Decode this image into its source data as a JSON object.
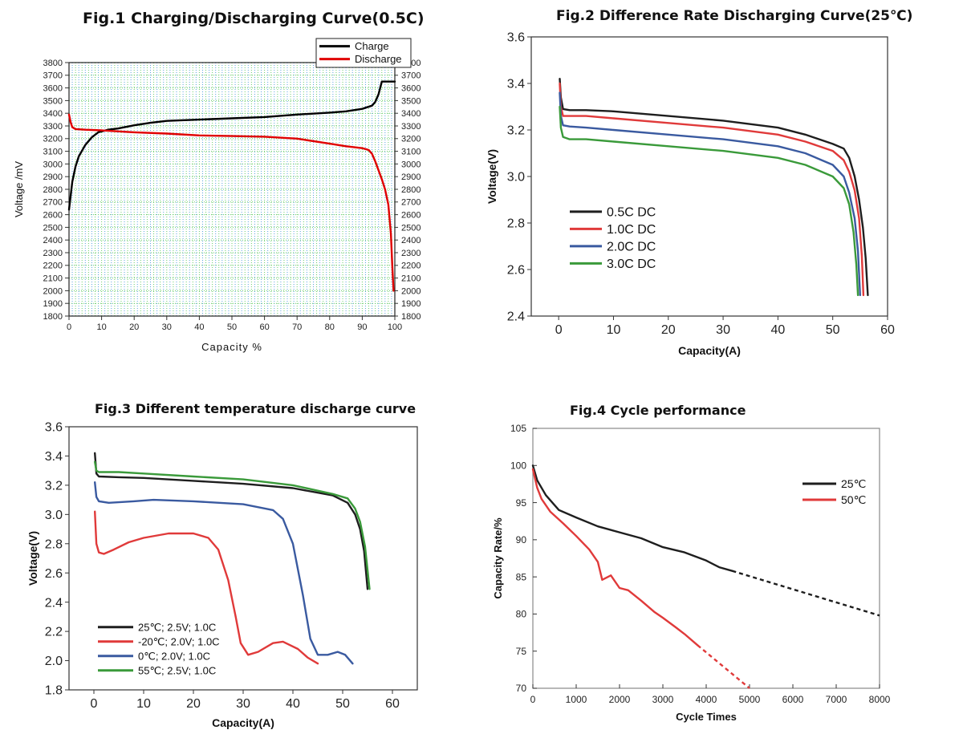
{
  "chart_data": [
    {
      "id": "fig1",
      "type": "line",
      "title": "Fig.1  Charging/Discharging Curve(0.5C)",
      "xlabel": "Capacity  %",
      "ylabel": "Voltage /mV",
      "xlim": [
        0,
        100
      ],
      "ylim": [
        1800,
        3800
      ],
      "xticks": [
        "0",
        "10",
        "20",
        "30",
        "40",
        "50",
        "60",
        "70",
        "80",
        "90",
        "100"
      ],
      "yticks": [
        "1800",
        "1900",
        "2000",
        "2100",
        "2200",
        "2300",
        "2400",
        "2500",
        "2600",
        "2700",
        "2800",
        "2900",
        "3000",
        "3100",
        "3200",
        "3300",
        "3400",
        "3500",
        "3600",
        "3700",
        "3800"
      ],
      "grid": true,
      "legend_position": "top-right",
      "series": [
        {
          "name": "Charge",
          "color": "#000000",
          "points": [
            [
              0,
              2640
            ],
            [
              1,
              2860
            ],
            [
              2,
              2980
            ],
            [
              3,
              3060
            ],
            [
              5,
              3150
            ],
            [
              7,
              3210
            ],
            [
              9,
              3250
            ],
            [
              12,
              3270
            ],
            [
              15,
              3280
            ],
            [
              20,
              3305
            ],
            [
              25,
              3325
            ],
            [
              30,
              3340
            ],
            [
              40,
              3350
            ],
            [
              50,
              3360
            ],
            [
              60,
              3370
            ],
            [
              70,
              3390
            ],
            [
              80,
              3405
            ],
            [
              85,
              3415
            ],
            [
              90,
              3435
            ],
            [
              93,
              3460
            ],
            [
              94,
              3490
            ],
            [
              95,
              3550
            ],
            [
              96,
              3650
            ],
            [
              98,
              3650
            ],
            [
              100,
              3650
            ]
          ]
        },
        {
          "name": "Discharge",
          "color": "#e00000",
          "points": [
            [
              0,
              3390
            ],
            [
              0.5,
              3330
            ],
            [
              1,
              3290
            ],
            [
              2,
              3275
            ],
            [
              5,
              3270
            ],
            [
              10,
              3265
            ],
            [
              20,
              3250
            ],
            [
              30,
              3240
            ],
            [
              40,
              3225
            ],
            [
              50,
              3220
            ],
            [
              60,
              3215
            ],
            [
              70,
              3200
            ],
            [
              80,
              3160
            ],
            [
              85,
              3140
            ],
            [
              90,
              3125
            ],
            [
              92,
              3110
            ],
            [
              93,
              3080
            ],
            [
              94,
              3020
            ],
            [
              95,
              2950
            ],
            [
              96,
              2880
            ],
            [
              97,
              2800
            ],
            [
              98,
              2680
            ],
            [
              98.8,
              2450
            ],
            [
              99.2,
              2200
            ],
            [
              99.6,
              2000
            ]
          ]
        }
      ]
    },
    {
      "id": "fig2",
      "type": "line",
      "title": "Fig.2 Difference Rate Discharging Curve(25℃)",
      "xlabel": "Capacity(A)",
      "ylabel": "Voltage(V)",
      "xlim": [
        -5,
        60
      ],
      "ylim": [
        2.4,
        3.6
      ],
      "xticks": [
        "0",
        "10",
        "20",
        "30",
        "40",
        "50",
        "60"
      ],
      "yticks": [
        "2.4",
        "2.6",
        "2.8",
        "3.0",
        "3.2",
        "3.4",
        "3.6"
      ],
      "grid": false,
      "legend_position": "bottom-left",
      "series": [
        {
          "name": "0.5C DC",
          "color": "#1e1e1e",
          "points": [
            [
              0.2,
              3.42
            ],
            [
              0.4,
              3.34
            ],
            [
              0.8,
              3.29
            ],
            [
              2,
              3.285
            ],
            [
              5,
              3.285
            ],
            [
              10,
              3.28
            ],
            [
              20,
              3.26
            ],
            [
              30,
              3.24
            ],
            [
              40,
              3.21
            ],
            [
              45,
              3.18
            ],
            [
              50,
              3.14
            ],
            [
              52,
              3.12
            ],
            [
              53,
              3.08
            ],
            [
              54,
              3.0
            ],
            [
              54.8,
              2.9
            ],
            [
              55.5,
              2.78
            ],
            [
              56,
              2.65
            ],
            [
              56.4,
              2.49
            ]
          ]
        },
        {
          "name": "1.0C DC",
          "color": "#e03a3a",
          "points": [
            [
              0.2,
              3.4
            ],
            [
              0.4,
              3.3
            ],
            [
              0.8,
              3.26
            ],
            [
              2,
              3.26
            ],
            [
              5,
              3.26
            ],
            [
              10,
              3.25
            ],
            [
              20,
              3.23
            ],
            [
              30,
              3.21
            ],
            [
              40,
              3.18
            ],
            [
              45,
              3.15
            ],
            [
              50,
              3.11
            ],
            [
              52,
              3.07
            ],
            [
              53,
              3.02
            ],
            [
              54,
              2.94
            ],
            [
              54.8,
              2.82
            ],
            [
              55.3,
              2.66
            ],
            [
              55.6,
              2.49
            ]
          ]
        },
        {
          "name": "2.0C DC",
          "color": "#3a5aa0",
          "points": [
            [
              0.2,
              3.36
            ],
            [
              0.4,
              3.26
            ],
            [
              0.8,
              3.22
            ],
            [
              2,
              3.215
            ],
            [
              5,
              3.21
            ],
            [
              10,
              3.2
            ],
            [
              20,
              3.18
            ],
            [
              30,
              3.16
            ],
            [
              40,
              3.13
            ],
            [
              45,
              3.1
            ],
            [
              50,
              3.05
            ],
            [
              52,
              3.0
            ],
            [
              53,
              2.93
            ],
            [
              54,
              2.82
            ],
            [
              54.6,
              2.68
            ],
            [
              55,
              2.49
            ]
          ]
        },
        {
          "name": "3.0C DC",
          "color": "#3a9a3a",
          "points": [
            [
              0.2,
              3.3
            ],
            [
              0.4,
              3.21
            ],
            [
              0.8,
              3.17
            ],
            [
              2,
              3.16
            ],
            [
              5,
              3.16
            ],
            [
              10,
              3.15
            ],
            [
              20,
              3.13
            ],
            [
              30,
              3.11
            ],
            [
              40,
              3.08
            ],
            [
              45,
              3.05
            ],
            [
              50,
              3.0
            ],
            [
              52,
              2.95
            ],
            [
              53,
              2.88
            ],
            [
              53.8,
              2.76
            ],
            [
              54.3,
              2.62
            ],
            [
              54.6,
              2.49
            ]
          ]
        }
      ]
    },
    {
      "id": "fig3",
      "type": "line",
      "title": "Fig.3 Different temperature discharge curve",
      "xlabel": "Capacity(A)",
      "ylabel": "Voltage(V)",
      "xlim": [
        -5,
        65
      ],
      "ylim": [
        1.8,
        3.6
      ],
      "xticks": [
        "0",
        "10",
        "20",
        "30",
        "40",
        "50",
        "60"
      ],
      "yticks": [
        "1.8",
        "2.0",
        "2.2",
        "2.4",
        "2.6",
        "2.8",
        "3.0",
        "3.2",
        "3.4",
        "3.6"
      ],
      "grid": false,
      "legend_position": "bottom-left",
      "series": [
        {
          "name": "25℃; 2.5V; 1.0C",
          "color": "#1e1e1e",
          "points": [
            [
              0.2,
              3.42
            ],
            [
              0.5,
              3.28
            ],
            [
              1,
              3.26
            ],
            [
              5,
              3.255
            ],
            [
              10,
              3.25
            ],
            [
              20,
              3.23
            ],
            [
              30,
              3.21
            ],
            [
              40,
              3.18
            ],
            [
              48,
              3.13
            ],
            [
              51,
              3.08
            ],
            [
              52.5,
              3.0
            ],
            [
              53.5,
              2.9
            ],
            [
              54.3,
              2.75
            ],
            [
              55,
              2.49
            ]
          ]
        },
        {
          "name": "-20℃; 2.0V; 1.0C",
          "color": "#e03a3a",
          "points": [
            [
              0.2,
              3.02
            ],
            [
              0.5,
              2.8
            ],
            [
              1,
              2.74
            ],
            [
              2,
              2.73
            ],
            [
              4,
              2.76
            ],
            [
              7,
              2.81
            ],
            [
              10,
              2.84
            ],
            [
              15,
              2.87
            ],
            [
              20,
              2.87
            ],
            [
              23,
              2.84
            ],
            [
              25,
              2.76
            ],
            [
              27,
              2.55
            ],
            [
              28.5,
              2.3
            ],
            [
              29.5,
              2.12
            ],
            [
              31,
              2.04
            ],
            [
              33,
              2.06
            ],
            [
              36,
              2.12
            ],
            [
              38,
              2.13
            ],
            [
              41,
              2.08
            ],
            [
              43,
              2.02
            ],
            [
              45,
              1.98
            ]
          ]
        },
        {
          "name": "0℃; 2.0V; 1.0C",
          "color": "#3a5aa0",
          "points": [
            [
              0.2,
              3.22
            ],
            [
              0.5,
              3.12
            ],
            [
              1,
              3.09
            ],
            [
              3,
              3.08
            ],
            [
              8,
              3.09
            ],
            [
              12,
              3.1
            ],
            [
              20,
              3.09
            ],
            [
              30,
              3.07
            ],
            [
              36,
              3.03
            ],
            [
              38,
              2.97
            ],
            [
              40,
              2.8
            ],
            [
              42,
              2.45
            ],
            [
              43.5,
              2.15
            ],
            [
              45,
              2.04
            ],
            [
              47,
              2.04
            ],
            [
              49,
              2.06
            ],
            [
              50.5,
              2.04
            ],
            [
              52,
              1.98
            ]
          ]
        },
        {
          "name": "55℃; 2.5V; 1.0C",
          "color": "#3a9a3a",
          "points": [
            [
              0.2,
              3.36
            ],
            [
              0.5,
              3.3
            ],
            [
              1,
              3.29
            ],
            [
              5,
              3.29
            ],
            [
              10,
              3.28
            ],
            [
              20,
              3.26
            ],
            [
              30,
              3.24
            ],
            [
              40,
              3.2
            ],
            [
              48,
              3.14
            ],
            [
              51,
              3.11
            ],
            [
              52.5,
              3.04
            ],
            [
              53.5,
              2.95
            ],
            [
              54.5,
              2.78
            ],
            [
              55.4,
              2.49
            ]
          ]
        }
      ]
    },
    {
      "id": "fig4",
      "type": "line",
      "title": "Fig.4 Cycle performance",
      "xlabel": "Cycle Times",
      "ylabel": "Capacity Rate/%",
      "xlim": [
        0,
        8000
      ],
      "ylim": [
        70,
        105
      ],
      "xticks": [
        "0",
        "1000",
        "2000",
        "3000",
        "4000",
        "5000",
        "6000",
        "7000",
        "8000"
      ],
      "yticks": [
        "70",
        "75",
        "80",
        "85",
        "90",
        "95",
        "100",
        "105"
      ],
      "grid": false,
      "legend_position": "top-right",
      "series": [
        {
          "name": "25℃",
          "color": "#1e1e1e",
          "points": [
            [
              0,
              100
            ],
            [
              100,
              98
            ],
            [
              300,
              96
            ],
            [
              600,
              94
            ],
            [
              1000,
              93
            ],
            [
              1500,
              91.8
            ],
            [
              2000,
              91
            ],
            [
              2500,
              90.2
            ],
            [
              3000,
              89
            ],
            [
              3500,
              88.3
            ],
            [
              4000,
              87.2
            ],
            [
              4300,
              86.3
            ],
            [
              4600,
              85.8
            ]
          ],
          "projection": [
            [
              4600,
              85.8
            ],
            [
              8000,
              79.8
            ]
          ]
        },
        {
          "name": "50℃",
          "color": "#e03a3a",
          "points": [
            [
              0,
              99.5
            ],
            [
              100,
              97
            ],
            [
              200,
              95.5
            ],
            [
              400,
              93.8
            ],
            [
              700,
              92.2
            ],
            [
              1000,
              90.5
            ],
            [
              1300,
              88.7
            ],
            [
              1500,
              87
            ],
            [
              1600,
              84.6
            ],
            [
              1800,
              85.2
            ],
            [
              2000,
              83.5
            ],
            [
              2200,
              83.2
            ],
            [
              2500,
              81.8
            ],
            [
              2800,
              80.3
            ],
            [
              3000,
              79.5
            ],
            [
              3300,
              78.2
            ],
            [
              3500,
              77.3
            ],
            [
              3800,
              75.8
            ]
          ],
          "projection": [
            [
              3800,
              75.8
            ],
            [
              5000,
              70
            ]
          ]
        }
      ]
    }
  ]
}
